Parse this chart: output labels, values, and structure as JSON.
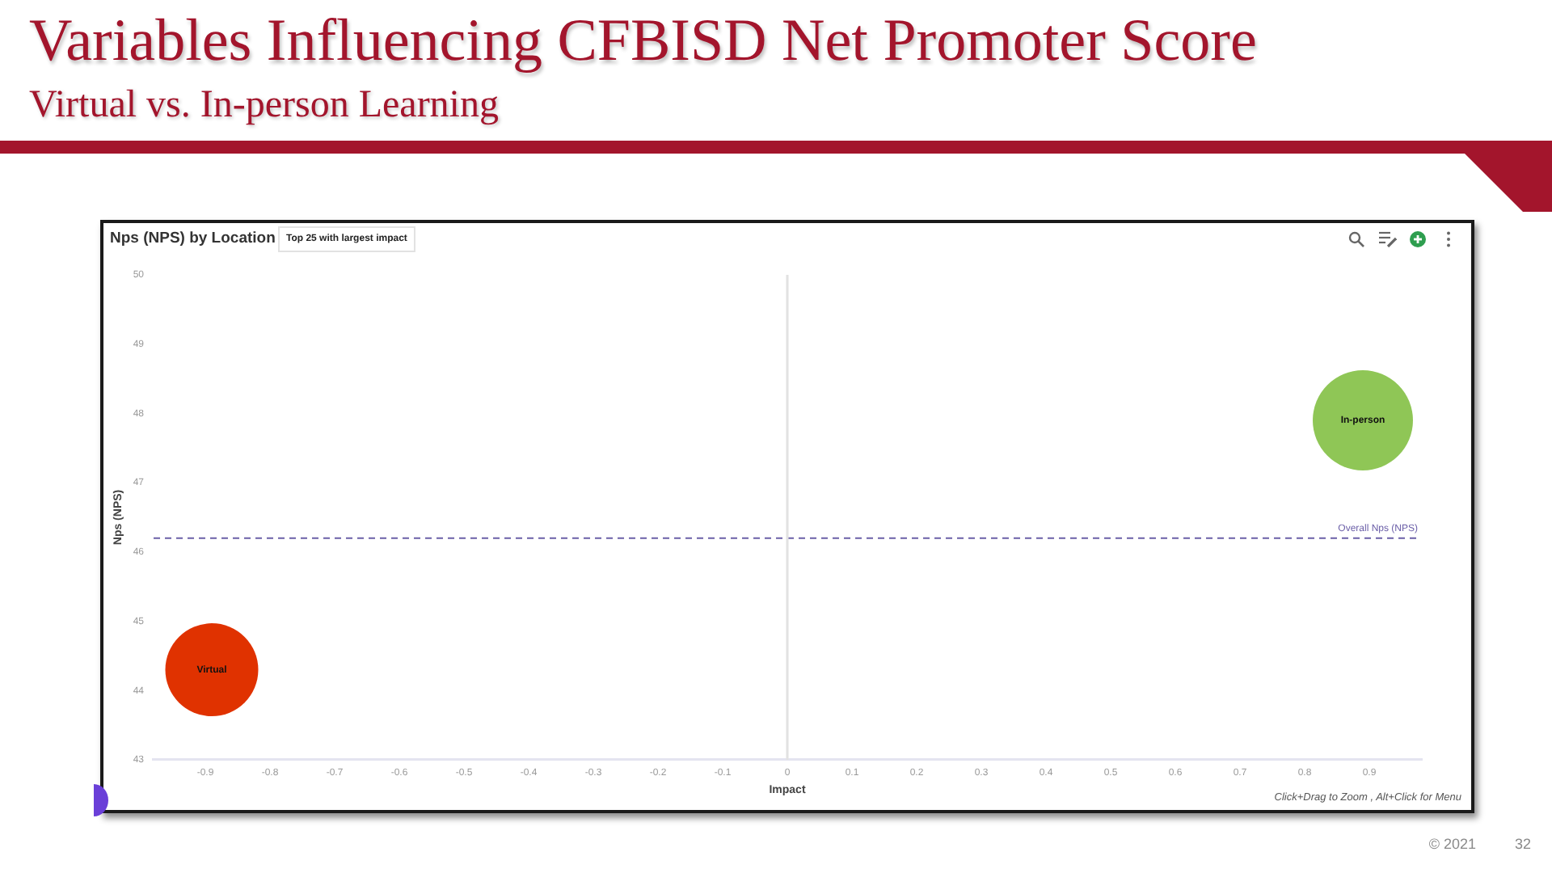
{
  "chart_data": {
    "type": "bubble",
    "title": "Variables Influencing CFBISD Net Promoter Score",
    "subtitle": "Virtual vs. In-person Learning",
    "xlabel": "Impact",
    "ylabel": "Nps (NPS)",
    "series": [
      {
        "name": "Virtual",
        "color": "#e03200",
        "x": [
          -0.89
        ],
        "values": [
          44.3
        ],
        "sizes": [
          0.86
        ]
      },
      {
        "name": "In-person",
        "color": "#8fc656",
        "x": [
          0.89
        ],
        "values": [
          47.9
        ],
        "sizes": [
          1
        ]
      }
    ],
    "xlim": [
      -0.98,
      0.98
    ],
    "xticks": [
      -0.9,
      -0.8,
      -0.7,
      -0.6,
      -0.5,
      -0.4,
      -0.3,
      -0.2,
      -0.1,
      0,
      0.1,
      0.2,
      0.3,
      0.4,
      0.5,
      0.6,
      0.7,
      0.8,
      0.9
    ],
    "ylim": [
      43,
      50
    ],
    "yticks": [
      43,
      44,
      45,
      46,
      47,
      48,
      49,
      50
    ],
    "ref_lines": [
      {
        "axis": "y",
        "value": 46.2,
        "label": "Overall Nps (NPS)",
        "color": "#6b5fa8",
        "line_style": "dashed"
      },
      {
        "axis": "x",
        "value": 0,
        "color": "#e2e2e2",
        "line_style": "solid"
      }
    ],
    "annotations": [
      "Nps (NPS) by Location",
      "Top 25 with largest impact",
      "Click+Drag to Zoom , Alt+Click for Menu",
      "© 2021",
      "32"
    ]
  }
}
